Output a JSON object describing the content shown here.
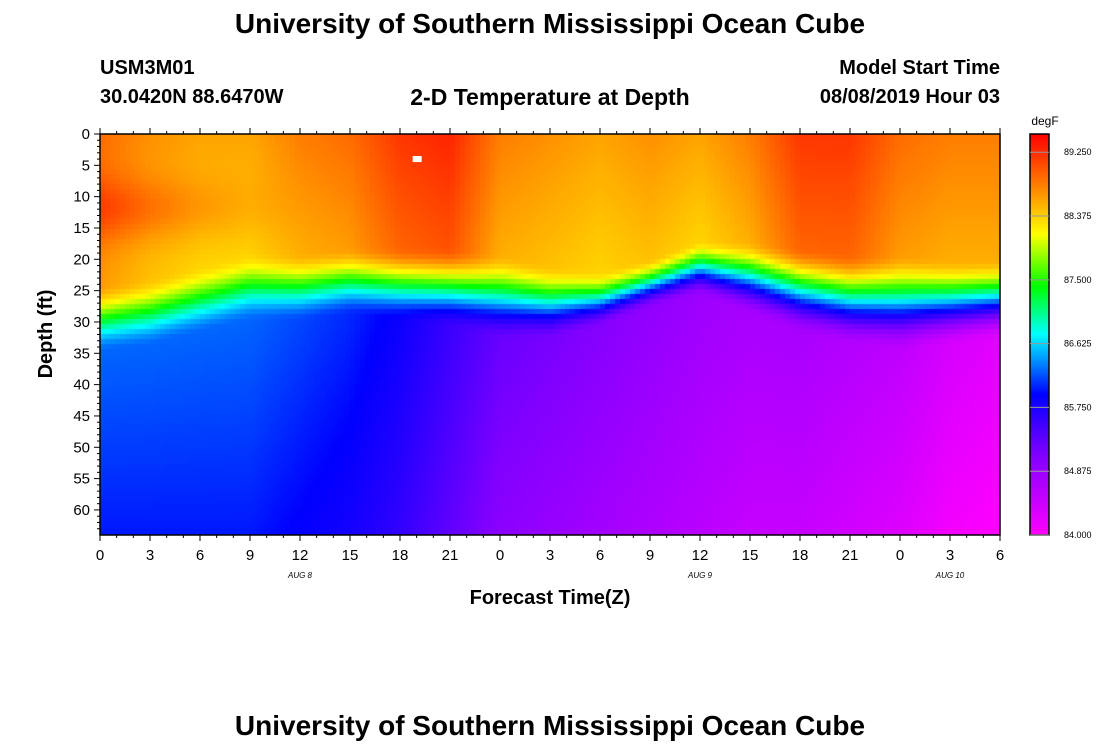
{
  "page": {
    "title_top": "University of Southern Mississippi Ocean Cube",
    "title_bottom": "University of Southern Mississippi Ocean Cube",
    "station_id": "USM3M01",
    "coords": "30.0420N 88.6470W",
    "plot_title": "2-D Temperature at Depth",
    "model_start_label": "Model Start Time",
    "model_start_value": "08/08/2019 Hour 03"
  },
  "colors": {
    "frame": "#000000",
    "marker": "#ffffff"
  },
  "chart_data": {
    "type": "heatmap",
    "title": "2-D Temperature at Depth",
    "xlabel": "Forecast Time(Z)",
    "ylabel": "Depth (ft)",
    "x_ticks": [
      "0",
      "3",
      "6",
      "9",
      "12",
      "15",
      "18",
      "21",
      "0",
      "3",
      "6",
      "9",
      "12",
      "15",
      "18",
      "21",
      "0",
      "3",
      "6"
    ],
    "x_hours": [
      0,
      3,
      6,
      9,
      12,
      15,
      18,
      21,
      24,
      27,
      30,
      33,
      36,
      39,
      42,
      45,
      48,
      51,
      54
    ],
    "xlim": [
      0,
      54
    ],
    "date_labels": [
      {
        "text": "AUG 8",
        "hour": 12
      },
      {
        "text": "AUG 9",
        "hour": 36
      },
      {
        "text": "AUG 10",
        "hour": 51
      }
    ],
    "y_ticks": [
      "0",
      "5",
      "10",
      "15",
      "20",
      "25",
      "30",
      "35",
      "40",
      "45",
      "50",
      "55",
      "60"
    ],
    "y_values": [
      0,
      5,
      10,
      15,
      20,
      25,
      30,
      35,
      40,
      45,
      50,
      55,
      60
    ],
    "ylim": [
      0,
      64
    ],
    "colorbar": {
      "unit": "degF",
      "min": 84.0,
      "max": 89.5,
      "labels": [
        "89.250",
        "88.375",
        "87.500",
        "86.625",
        "85.750",
        "84.875",
        "84.000"
      ],
      "label_values": [
        89.25,
        88.375,
        87.5,
        86.625,
        85.75,
        84.875,
        84.0
      ]
    },
    "surface_max": {
      "hour": 19,
      "depth": 4
    },
    "profile": {
      "hours": [
        0,
        3,
        6,
        9,
        12,
        15,
        18,
        21,
        24,
        27,
        30,
        33,
        36,
        39,
        42,
        45,
        48,
        51,
        54
      ],
      "thermocline_top_ft": [
        24,
        23,
        21,
        19,
        19,
        18,
        18,
        18,
        19,
        21,
        22,
        20,
        17,
        17,
        18,
        19,
        19,
        20,
        20
      ],
      "thermocline_bottom_ft": [
        35,
        34,
        32,
        30,
        30,
        29,
        30,
        31,
        33,
        33,
        31,
        28,
        26,
        29,
        32,
        34,
        35,
        34,
        33
      ],
      "surface_degF": [
        88.9,
        88.7,
        88.6,
        88.6,
        88.8,
        88.9,
        89.2,
        89.3,
        88.8,
        88.7,
        88.6,
        88.7,
        88.6,
        88.8,
        89.2,
        89.2,
        88.9,
        88.8,
        88.8
      ],
      "bottom_degF": [
        86.0,
        86.0,
        86.0,
        86.0,
        85.9,
        85.8,
        85.6,
        85.3,
        85.0,
        84.9,
        84.8,
        84.7,
        84.6,
        84.5,
        84.5,
        84.4,
        84.3,
        84.1,
        84.0
      ],
      "upper_boost_degF": [
        0.4,
        0.3,
        0.2,
        0.1,
        0.0,
        0.0,
        0.0,
        0.0,
        0.0,
        0.0,
        0.0,
        0.0,
        0.0,
        0.0,
        0.0,
        0.0,
        0.0,
        0.0,
        0.0
      ]
    }
  }
}
